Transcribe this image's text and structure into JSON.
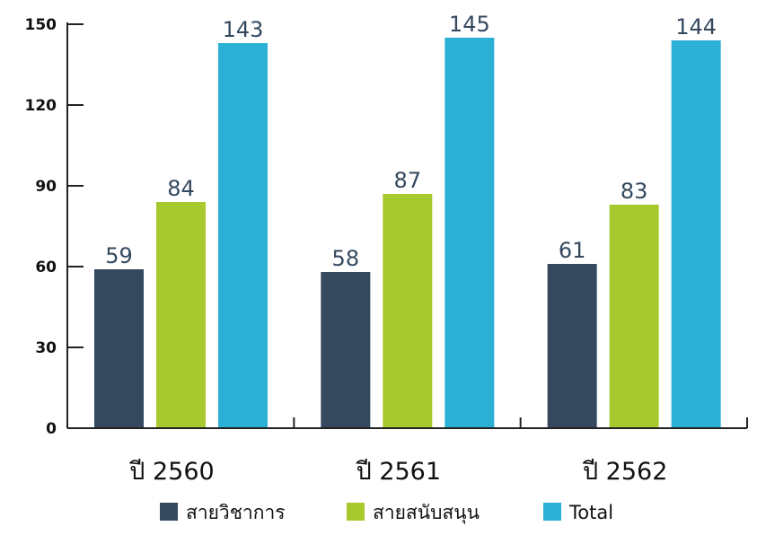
{
  "chart_data": {
    "type": "bar",
    "categories": [
      "ปี 2560",
      "ปี 2561",
      "ปี 2562"
    ],
    "series": [
      {
        "name": "สายวิชาการ",
        "values": [
          59,
          58,
          61
        ],
        "color": "#34495e"
      },
      {
        "name": "สายสนับสนุน",
        "values": [
          84,
          87,
          83
        ],
        "color": "#a8c92d"
      },
      {
        "name": "Total",
        "values": [
          143,
          145,
          144
        ],
        "color": "#2bb0d6"
      }
    ],
    "ylim": [
      0,
      150
    ],
    "yticks": [
      0,
      30,
      60,
      90,
      120,
      150
    ],
    "grid": false,
    "legend_position": "bottom"
  }
}
